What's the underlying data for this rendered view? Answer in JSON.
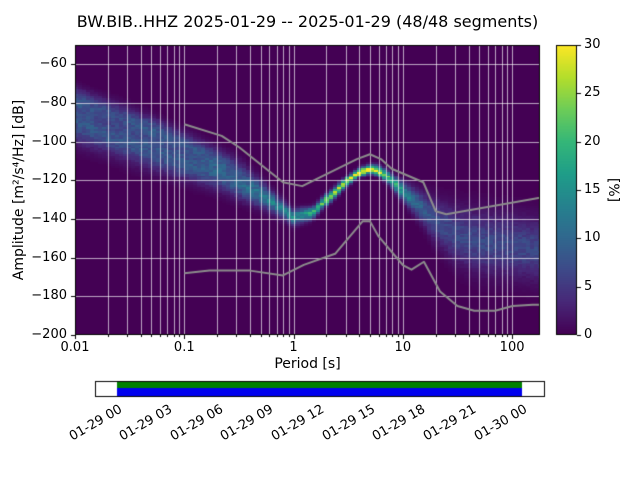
{
  "title": "BW.BIB..HHZ   2025-01-29 -- 2025-01-29  (48/48 segments)",
  "axes": {
    "xlabel": "Period [s]",
    "ylabel": "Amplitude [m²/s⁴/Hz] [dB]",
    "x_ticks": [
      {
        "value": 0.01,
        "label": "0.01"
      },
      {
        "value": 0.1,
        "label": "0.1"
      },
      {
        "value": 1,
        "label": "1"
      },
      {
        "value": 10,
        "label": "10"
      },
      {
        "value": 100,
        "label": "100"
      }
    ],
    "y_ticks": [
      {
        "value": -60,
        "label": "−60"
      },
      {
        "value": -80,
        "label": "−80"
      },
      {
        "value": -100,
        "label": "−100"
      },
      {
        "value": -120,
        "label": "−120"
      },
      {
        "value": -140,
        "label": "−140"
      },
      {
        "value": -160,
        "label": "−160"
      },
      {
        "value": -180,
        "label": "−180"
      },
      {
        "value": -200,
        "label": "−200"
      }
    ]
  },
  "colorbar": {
    "label": "[%]",
    "min": 0,
    "max": 30,
    "ticks": [
      0,
      5,
      10,
      15,
      20,
      25,
      30
    ]
  },
  "timeline": {
    "tick_labels": [
      "01-29 00",
      "01-29 03",
      "01-29 06",
      "01-29 09",
      "01-29 12",
      "01-29 15",
      "01-29 18",
      "01-29 21",
      "01-30 00"
    ],
    "used_color": "#008000",
    "coverage_color": "#0000ee",
    "bar_fill_color": "#ffffff",
    "bar_outline_color": "#000000"
  },
  "colors": {
    "background": "#ffffff",
    "plot_background": "#440154",
    "grid": "rgba(255,255,255,0.65)",
    "noise_model": "#8c8c8c",
    "frame": "#000000"
  },
  "chart_data": {
    "type": "heatmap",
    "title": "BW.BIB..HHZ  2025-01-29 -- 2025-01-29  (48/48 segments)",
    "xlabel": "Period [s]",
    "ylabel": "Amplitude [m²/s⁴/Hz] [dB]",
    "x_scale": "log",
    "xlim": [
      0.01,
      180
    ],
    "ylim": [
      -200,
      -50
    ],
    "grid": true,
    "colormap": "viridis",
    "clim": [
      0,
      30
    ],
    "colorbar_label": "[%]",
    "db_bin_width": 1,
    "period_bin_decades": 0.03763,
    "bands": [
      {
        "name": "main-psd-distribution",
        "point_format": [
          "period_s",
          "mode_db",
          "sigma_db",
          "peak_percent"
        ],
        "points": [
          [
            0.01,
            -90,
            7,
            8
          ],
          [
            0.02,
            -97,
            6,
            8
          ],
          [
            0.05,
            -105,
            6,
            8
          ],
          [
            0.1,
            -112,
            5,
            8
          ],
          [
            0.2,
            -117,
            5,
            8
          ],
          [
            0.5,
            -128,
            4,
            10
          ],
          [
            0.8,
            -135,
            3,
            12
          ],
          [
            1.0,
            -139,
            2.5,
            14
          ],
          [
            1.5,
            -137,
            2,
            18
          ],
          [
            2.0,
            -130,
            1.8,
            22
          ],
          [
            3.0,
            -121,
            1.5,
            27
          ],
          [
            4.0,
            -116,
            1.4,
            30
          ],
          [
            5.0,
            -114,
            1.4,
            30
          ],
          [
            6.0,
            -115,
            1.6,
            27
          ],
          [
            8.0,
            -120,
            2.2,
            20
          ],
          [
            10,
            -126,
            3,
            14
          ],
          [
            15,
            -134,
            5,
            9
          ],
          [
            20,
            -141,
            7,
            7
          ],
          [
            30,
            -148,
            9,
            6.5
          ],
          [
            50,
            -152,
            10,
            6.5
          ],
          [
            100,
            -154,
            10,
            6.5
          ],
          [
            180,
            -156,
            10,
            6.5
          ]
        ]
      },
      {
        "name": "upper-psd-branch",
        "point_format": [
          "period_s",
          "mode_db",
          "sigma_db",
          "peak_percent"
        ],
        "points": [
          [
            0.01,
            -78,
            4,
            6
          ],
          [
            0.02,
            -84,
            4,
            6
          ],
          [
            0.05,
            -93,
            4,
            7
          ],
          [
            0.1,
            -101,
            4,
            7
          ],
          [
            0.2,
            -109,
            4,
            6
          ],
          [
            0.35,
            -116,
            4,
            4
          ],
          [
            0.5,
            -124,
            4,
            3
          ],
          [
            0.7,
            -132,
            3,
            1.5
          ],
          [
            1.0,
            -140,
            2,
            0
          ]
        ]
      }
    ],
    "noise_models": {
      "high_noise_model": [
        [
          0.1,
          -91
        ],
        [
          0.22,
          -97
        ],
        [
          0.32,
          -103
        ],
        [
          0.8,
          -121
        ],
        [
          1.2,
          -123
        ],
        [
          3.8,
          -109
        ],
        [
          5.0,
          -106.5
        ],
        [
          6.3,
          -109
        ],
        [
          7.9,
          -114
        ],
        [
          15.4,
          -121
        ],
        [
          20,
          -136
        ],
        [
          25,
          -137.5
        ],
        [
          180,
          -129
        ]
      ],
      "low_noise_model": [
        [
          0.1,
          -168
        ],
        [
          0.17,
          -166.7
        ],
        [
          0.4,
          -166.7
        ],
        [
          0.8,
          -169.2
        ],
        [
          1.24,
          -163.7
        ],
        [
          2.4,
          -158
        ],
        [
          4.3,
          -141.1
        ],
        [
          5.0,
          -141.1
        ],
        [
          6.0,
          -149
        ],
        [
          10.0,
          -163.8
        ],
        [
          12.0,
          -166.2
        ],
        [
          15.6,
          -162.1
        ],
        [
          21.9,
          -177.5
        ],
        [
          31.6,
          -185
        ],
        [
          45.0,
          -187.5
        ],
        [
          70.0,
          -187.5
        ],
        [
          101,
          -185
        ],
        [
          154,
          -184.4
        ],
        [
          180,
          -184.4
        ]
      ]
    }
  }
}
